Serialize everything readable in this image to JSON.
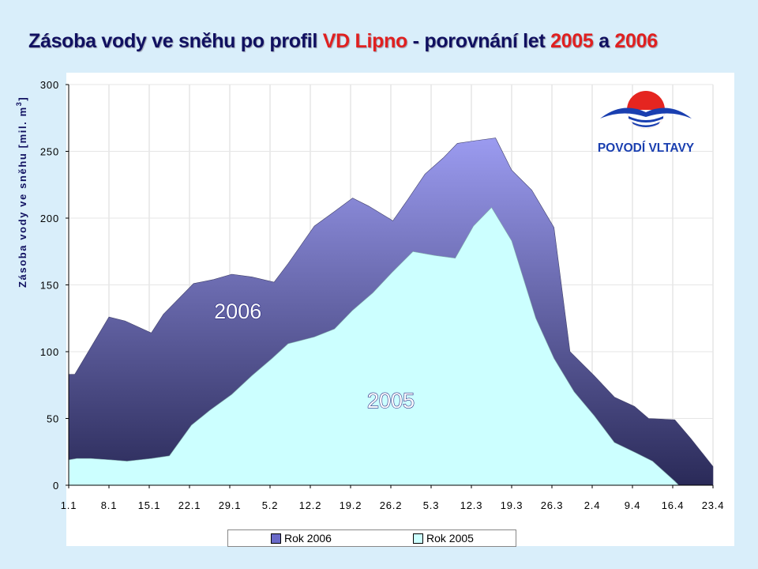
{
  "title": {
    "part1": "Zásoba vody ve sněhu po profil ",
    "part2": "VD Lipno",
    "part3": " - porovnání let ",
    "part4": "2005",
    "part5": " a ",
    "part6": "2006"
  },
  "logo": {
    "text": "POVODÍ VLTAVY"
  },
  "colors": {
    "series_2006_top": "#9b9bf0",
    "series_2006_bottom": "#2a2a58",
    "series_2005": "#ccffff",
    "title_dark": "#101060",
    "title_red": "#e02020",
    "background": "#d9eefa"
  },
  "chart_data": {
    "type": "area",
    "title": "Zásoba vody ve sněhu po profil VD Lipno - porovnání let 2005 a 2006",
    "ylabel": "Zásoba vody ve sněhu [mil. m³]",
    "ylabel_main": "Zásoba vody ve sněhu [mil. m",
    "ylabel_sup": "3",
    "ylabel_close": "]",
    "xlabel": "",
    "ylim": [
      0,
      300
    ],
    "yticks": [
      "0",
      "50",
      "100",
      "150",
      "200",
      "250",
      "300"
    ],
    "categories": [
      "1.1",
      "8.1",
      "15.1",
      "22.1",
      "29.1",
      "5.2",
      "12.2",
      "19.2",
      "26.2",
      "5.3",
      "12.3",
      "19.3",
      "26.3",
      "2.4",
      "9.4",
      "16.4",
      "23.4"
    ],
    "x_range": [
      0,
      16
    ],
    "grid": true,
    "legend_position": "bottom",
    "annotations": [
      {
        "text": "2006",
        "x": 4.2,
        "y": 125
      },
      {
        "text": "2005",
        "x": 8.0,
        "y": 58
      }
    ],
    "series": [
      {
        "name": "Rok 2006",
        "x": [
          0,
          0.15,
          1,
          1.4,
          2.05,
          2.35,
          3.1,
          3.6,
          4.05,
          4.55,
          5.1,
          5.45,
          6.1,
          6.6,
          7.05,
          7.45,
          8.05,
          8.4,
          8.85,
          9.3,
          9.65,
          10.1,
          10.6,
          11,
          11.5,
          12.05,
          12.45,
          13.05,
          13.55,
          14.05,
          14.4,
          15.05,
          15.45,
          16
        ],
        "values": [
          83,
          83,
          126,
          123,
          114,
          128,
          151,
          154,
          158,
          156,
          152,
          166,
          194,
          205,
          215,
          209,
          198,
          213,
          233,
          245,
          256,
          258,
          260,
          236,
          221,
          193,
          100,
          82,
          66,
          59,
          50,
          49,
          35,
          14
        ]
      },
      {
        "name": "Rok 2005",
        "x": [
          0,
          0.2,
          0.55,
          1.05,
          1.45,
          2.05,
          2.5,
          3.05,
          3.5,
          4.05,
          4.55,
          5.05,
          5.45,
          6.1,
          6.6,
          7.05,
          7.55,
          8.05,
          8.55,
          9.1,
          9.6,
          10.05,
          10.5,
          11,
          11.6,
          12.05,
          12.55,
          13.05,
          13.55,
          14.1,
          14.5,
          15.05,
          15.15
        ],
        "values": [
          19,
          20,
          20,
          19,
          18,
          20,
          22,
          45,
          56,
          68,
          82,
          95,
          106,
          111,
          117,
          131,
          144,
          160,
          175,
          172,
          170,
          194,
          208,
          183,
          125,
          95,
          70,
          52,
          32,
          24,
          18,
          3,
          0
        ]
      }
    ]
  }
}
